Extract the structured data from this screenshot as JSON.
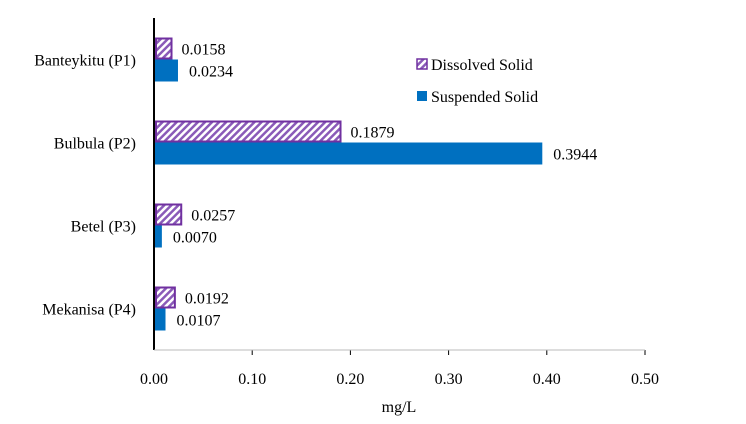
{
  "chart_data": {
    "type": "bar",
    "orientation": "horizontal",
    "title": "",
    "xlabel": "mg/L",
    "ylabel": "",
    "xlim": [
      0,
      0.5
    ],
    "xticks": [
      "0.00",
      "0.10",
      "0.20",
      "0.30",
      "0.40",
      "0.50"
    ],
    "grid": false,
    "legend_position": "top-right",
    "categories": [
      "Banteykitu (P1)",
      "Bulbula (P2)",
      "Betel (P3)",
      "Mekanisa (P4)"
    ],
    "series": [
      {
        "name": "Dissolved Solid",
        "color": "#7030A0",
        "pattern": "diagonal-hatch",
        "values": [
          0.0158,
          0.1879,
          0.0257,
          0.0192
        ],
        "labels": [
          "0.0158",
          "0.1879",
          "0.0257",
          "0.0192"
        ]
      },
      {
        "name": "Suspended Solid",
        "color": "#0070C0",
        "pattern": "solid",
        "values": [
          0.0234,
          0.3944,
          0.007,
          0.0107
        ],
        "labels": [
          "0.0234",
          "0.3944",
          "0.0070",
          "0.0107"
        ]
      }
    ]
  }
}
